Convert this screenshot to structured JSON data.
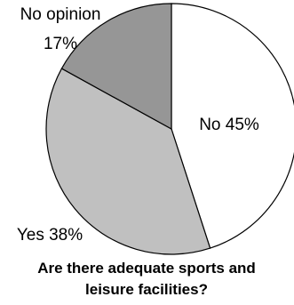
{
  "chart_data": {
    "type": "pie",
    "title_lines": [
      "Are there adequate sports and",
      "leisure facilities?"
    ],
    "start_angle_deg": 0,
    "direction": "clockwise",
    "slices": [
      {
        "name": "No",
        "value": 45,
        "label_lines": [
          "No 45%"
        ],
        "color": "#ffffff"
      },
      {
        "name": "Yes",
        "value": 38,
        "label_lines": [
          "Yes 38%"
        ],
        "color": "#c0c0c0"
      },
      {
        "name": "No opinion",
        "value": 17,
        "label_lines": [
          "No opinion",
          "17%"
        ],
        "color": "#969696"
      }
    ],
    "stroke_color": "#000000",
    "legend": "none"
  }
}
